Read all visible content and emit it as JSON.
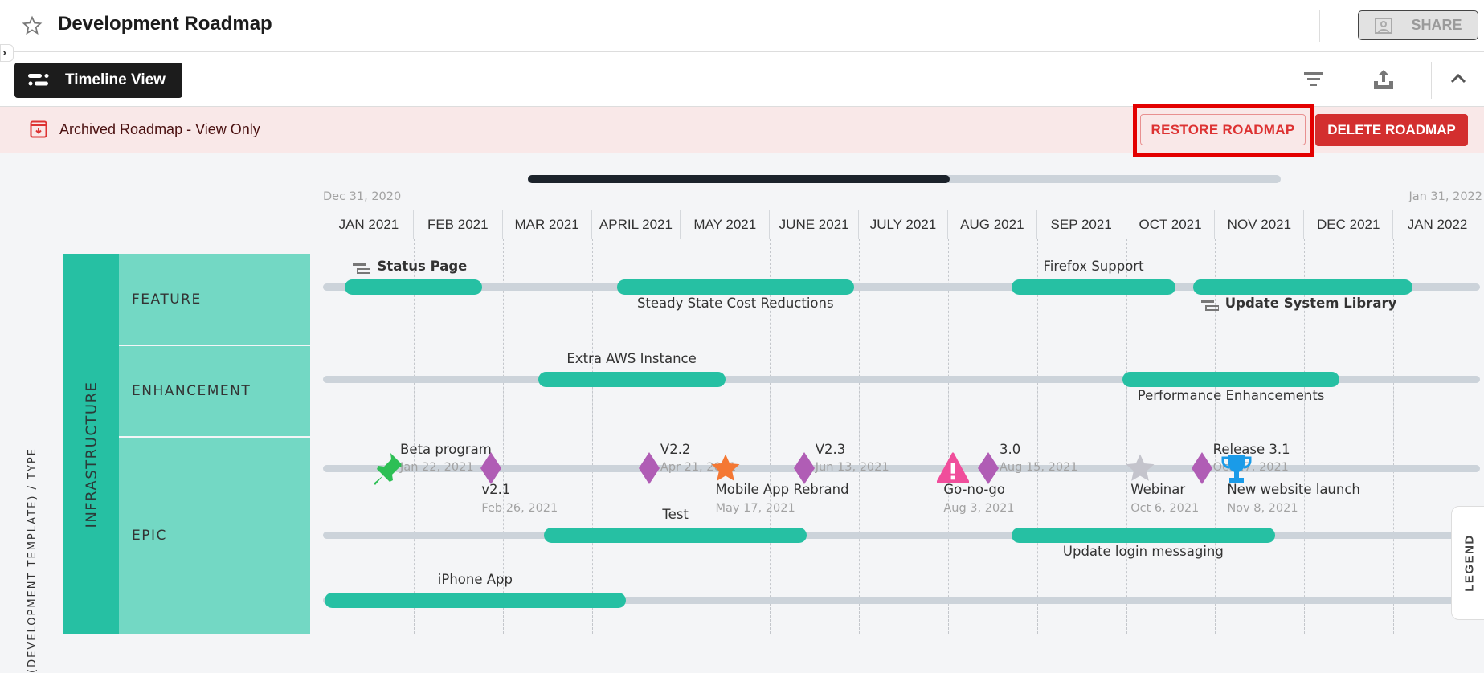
{
  "header": {
    "title": "Development Roadmap",
    "share_label": "SHARE"
  },
  "toolbar": {
    "view_label": "Timeline View"
  },
  "banner": {
    "text": "Archived Roadmap - View Only",
    "restore_label": "RESTORE ROADMAP",
    "delete_label": "DELETE ROADMAP"
  },
  "timeline": {
    "start_label": "Dec 31, 2020",
    "end_label": "Jan 31, 2022",
    "start": "2020-12-31",
    "end": "2022-01-31",
    "scroll_position": 0.56,
    "months": [
      "JAN 2021",
      "FEB 2021",
      "MAR 2021",
      "APRIL 2021",
      "MAY 2021",
      "JUNE 2021",
      "JULY 2021",
      "AUG 2021",
      "SEP 2021",
      "OCT 2021",
      "NOV 2021",
      "DEC 2021",
      "JAN 2022"
    ]
  },
  "side": {
    "axis_label": "(DEVELOPMENT TEMPLATE) / TYPE",
    "axis_label_visible": "PMENT TEMPLATE) / TYPE",
    "group": "INFRASTRUCTURE",
    "rows": [
      "FEATURE",
      "ENHANCEMENT",
      "EPIC"
    ]
  },
  "bars": [
    {
      "name": "Status Page",
      "start": "2021-01-07",
      "end": "2021-02-23",
      "track": 0,
      "label": "above",
      "bold": true,
      "icon": "roadmap-item-icon"
    },
    {
      "name": "Steady State Cost Reductions",
      "start": "2021-04-10",
      "end": "2021-06-30",
      "track": 0,
      "label": "below"
    },
    {
      "name": "Firefox Support",
      "start": "2021-08-23",
      "end": "2021-10-18",
      "track": 0,
      "label": "above"
    },
    {
      "name": "Update System Library",
      "start": "2021-10-24",
      "end": "2022-01-07",
      "track": 0,
      "label": "below",
      "bold": true,
      "icon": "roadmap-item-icon"
    },
    {
      "name": "Extra AWS Instance",
      "start": "2021-03-14",
      "end": "2021-05-17",
      "track": 1,
      "label": "above"
    },
    {
      "name": "Performance Enhancements",
      "start": "2021-09-30",
      "end": "2021-12-13",
      "track": 1,
      "label": "below"
    },
    {
      "name": "Test",
      "start": "2021-03-16",
      "end": "2021-06-14",
      "track": 3,
      "label": "above"
    },
    {
      "name": "Update login messaging",
      "start": "2021-08-23",
      "end": "2021-11-21",
      "track": 3,
      "label": "below"
    },
    {
      "name": "iPhone App",
      "start": "2020-12-31",
      "end": "2021-04-13",
      "track": 4,
      "label": "above"
    }
  ],
  "milestones": [
    {
      "name": "Beta program",
      "date": "Jan 22, 2021",
      "iso": "2021-01-22",
      "icon": "pushpin",
      "color": "#2dbf55",
      "label": "above"
    },
    {
      "name": "v2.1",
      "date": "Feb 26, 2021",
      "iso": "2021-02-26",
      "icon": "diamond",
      "color": "#b05db5",
      "label": "below"
    },
    {
      "name": "V2.2",
      "date": "Apr 21, 2021",
      "iso": "2021-04-21",
      "icon": "diamond",
      "color": "#b05db5",
      "label": "above"
    },
    {
      "name": "Mobile App Rebrand",
      "date": "May 17, 2021",
      "iso": "2021-05-17",
      "icon": "star",
      "color": "#f47834",
      "label": "below"
    },
    {
      "name": "V2.3",
      "date": "Jun 13, 2021",
      "iso": "2021-06-13",
      "icon": "diamond",
      "color": "#b05db5",
      "label": "above"
    },
    {
      "name": "Go-no-go",
      "date": "Aug 3, 2021",
      "iso": "2021-08-03",
      "icon": "warning",
      "color": "#f04e9b",
      "label": "below"
    },
    {
      "name": "3.0",
      "date": "Aug 15, 2021",
      "iso": "2021-08-15",
      "icon": "diamond",
      "color": "#b05db5",
      "label": "above"
    },
    {
      "name": "Webinar",
      "date": "Oct 6, 2021",
      "iso": "2021-10-06",
      "icon": "star",
      "color": "#c4c4cc",
      "label": "below"
    },
    {
      "name": "Release 3.1",
      "date": "Oct 27, 2021",
      "iso": "2021-10-27",
      "icon": "diamond",
      "color": "#b05db5",
      "label": "above"
    },
    {
      "name": "New website launch",
      "date": "Nov 8, 2021",
      "iso": "2021-11-08",
      "icon": "trophy",
      "color": "#1a9be8",
      "label": "below"
    }
  ],
  "legend_label": "LEGEND",
  "colors": {
    "bar": "#26c0a3",
    "track": "#ccd3da",
    "group": "#26c0a3",
    "row": "#73d8c4",
    "danger": "#d32f2f"
  }
}
